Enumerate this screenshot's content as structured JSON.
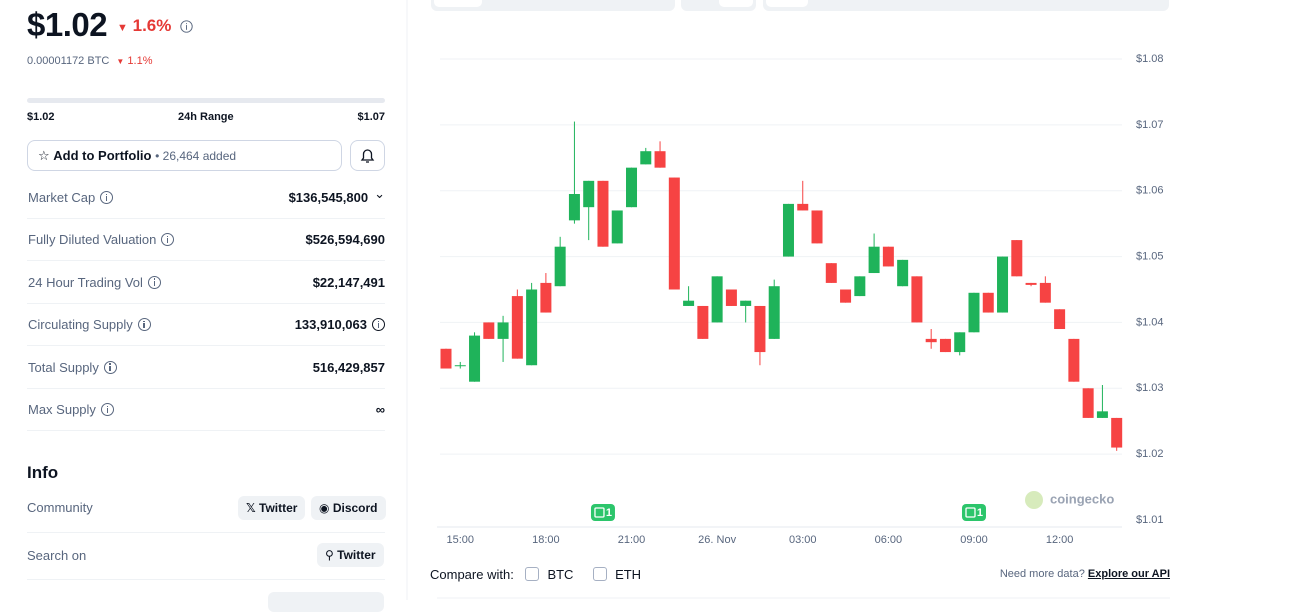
{
  "price": "$1.02",
  "price_change": "1.6%",
  "btc_price": "0.00001172 BTC",
  "btc_change": "1.1%",
  "range": {
    "low": "$1.02",
    "label": "24h Range",
    "high": "$1.07"
  },
  "portfolio": {
    "button": "Add to Portfolio",
    "added": "26,464 added"
  },
  "stats": [
    {
      "label": "Market Cap",
      "value": "$136,545,800"
    },
    {
      "label": "Fully Diluted Valuation",
      "value": "$526,594,690"
    },
    {
      "label": "24 Hour Trading Vol",
      "value": "$22,147,491"
    },
    {
      "label": "Circulating Supply",
      "value": "133,910,063"
    },
    {
      "label": "Total Supply",
      "value": "516,429,857"
    },
    {
      "label": "Max Supply",
      "value": "∞"
    }
  ],
  "info": {
    "title": "Info",
    "community_label": "Community",
    "community": [
      "Twitter",
      "Discord"
    ],
    "search_label": "Search on",
    "search": "Twitter"
  },
  "compare": {
    "label": "Compare with:",
    "options": [
      "BTC",
      "ETH"
    ],
    "more": "Need more data?",
    "link": "Explore our API"
  },
  "watermark": "coingecko",
  "chart_data": {
    "type": "candlestick",
    "categories": [
      null,
      "15:00",
      null,
      null,
      null,
      null,
      null,
      "18:00",
      null,
      null,
      null,
      null,
      null,
      "21:00",
      null,
      null,
      null,
      null,
      null,
      "26. Nov",
      null,
      null,
      null,
      null,
      null,
      "03:00",
      null,
      null,
      null,
      null,
      null,
      "06:00",
      null,
      null,
      null,
      null,
      null,
      "09:00",
      null,
      null,
      null,
      null,
      null,
      "12:00",
      null,
      null,
      null,
      null
    ],
    "open": [
      1.036,
      1.0335,
      1.031,
      1.04,
      1.0375,
      1.044,
      1.0335,
      1.046,
      1.0455,
      1.0555,
      1.0575,
      1.0615,
      1.052,
      1.0575,
      1.064,
      1.066,
      1.062,
      1.0425,
      1.0425,
      1.04,
      1.045,
      1.0425,
      1.0425,
      1.0375,
      1.05,
      1.058,
      1.057,
      1.049,
      1.045,
      1.044,
      1.0475,
      1.0515,
      1.0455,
      1.047,
      1.0375,
      1.0375,
      1.0355,
      1.0385,
      1.0445,
      1.0415,
      1.0525,
      1.046,
      1.046,
      1.042,
      1.0375,
      1.03,
      1.0255,
      1.0255
    ],
    "high": [
      1.036,
      1.034,
      1.0385,
      1.04,
      1.041,
      1.045,
      1.046,
      1.0475,
      1.053,
      1.0705,
      1.0615,
      1.0615,
      1.057,
      1.0635,
      1.0665,
      1.0675,
      1.062,
      1.0455,
      1.0425,
      1.047,
      1.045,
      1.0433,
      1.0425,
      1.0465,
      1.058,
      1.0615,
      1.057,
      1.049,
      1.045,
      1.047,
      1.0535,
      1.0515,
      1.0495,
      1.047,
      1.039,
      1.0375,
      1.0385,
      1.0445,
      1.0445,
      1.05,
      1.0525,
      1.046,
      1.047,
      1.042,
      1.0375,
      1.03,
      1.0305,
      1.0255
    ],
    "low": [
      1.033,
      1.033,
      1.031,
      1.0375,
      1.034,
      1.0345,
      1.0335,
      1.0415,
      1.0455,
      1.055,
      1.0525,
      1.0515,
      1.052,
      1.0575,
      1.064,
      1.0635,
      1.045,
      1.0425,
      1.0375,
      1.04,
      1.0425,
      1.04,
      1.0335,
      1.0375,
      1.05,
      1.057,
      1.052,
      1.046,
      1.043,
      1.044,
      1.0475,
      1.0485,
      1.0455,
      1.04,
      1.036,
      1.0355,
      1.035,
      1.0385,
      1.0415,
      1.0415,
      1.047,
      1.0455,
      1.043,
      1.039,
      1.031,
      1.0255,
      1.0255,
      1.0205
    ],
    "close": [
      1.033,
      1.0335,
      1.038,
      1.0375,
      1.04,
      1.0345,
      1.045,
      1.0415,
      1.0515,
      1.0595,
      1.0615,
      1.0515,
      1.057,
      1.0635,
      1.066,
      1.0635,
      1.045,
      1.0433,
      1.0375,
      1.047,
      1.0425,
      1.0433,
      1.0355,
      1.0455,
      1.058,
      1.057,
      1.052,
      1.046,
      1.043,
      1.047,
      1.0515,
      1.0485,
      1.0495,
      1.04,
      1.037,
      1.0355,
      1.0385,
      1.0445,
      1.0415,
      1.05,
      1.047,
      1.0457,
      1.043,
      1.039,
      1.031,
      1.0255,
      1.0265,
      1.021
    ],
    "up_color": "#1fb35a",
    "down_color": "#f64343",
    "ylim": [
      1.01,
      1.08
    ],
    "yticks": [
      {
        "value": 1.01,
        "label": "$1.01"
      },
      {
        "value": 1.02,
        "label": "$1.02"
      },
      {
        "value": 1.03,
        "label": "$1.03"
      },
      {
        "value": 1.04,
        "label": "$1.04"
      },
      {
        "value": 1.05,
        "label": "$1.05"
      },
      {
        "value": 1.06,
        "label": "$1.06"
      },
      {
        "value": 1.07,
        "label": "$1.07"
      },
      {
        "value": 1.08,
        "label": "$1.08"
      }
    ],
    "grid": true,
    "events": [
      {
        "text": "1",
        "at": 11
      },
      {
        "text": "1",
        "at": 37
      }
    ]
  }
}
